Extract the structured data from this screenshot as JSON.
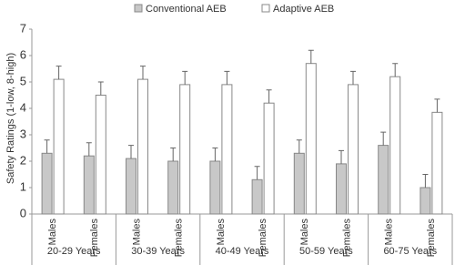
{
  "chart_data": {
    "type": "bar",
    "y_label": "Safety Ratings (1-low, 8-high)",
    "categories": [
      "Males",
      "Females",
      "Males",
      "Females",
      "Males",
      "Females",
      "Males",
      "Females",
      "Males",
      "Females"
    ],
    "groups": [
      "20-29 Years",
      "30-39 Years",
      "40-49 Years",
      "50-59 Years",
      "60-75 Years"
    ],
    "series": [
      {
        "name": "Conventional AEB",
        "color": "#c8c8c8",
        "values": [
          2.3,
          2.2,
          2.1,
          2.0,
          2.0,
          1.3,
          2.3,
          1.9,
          2.6,
          1.0
        ],
        "errors": [
          0.5,
          0.5,
          0.5,
          0.5,
          0.5,
          0.5,
          0.5,
          0.5,
          0.5,
          0.5
        ]
      },
      {
        "name": "Adaptive AEB",
        "color": "#ffffff",
        "values": [
          5.1,
          4.5,
          5.1,
          4.9,
          4.9,
          4.2,
          5.7,
          4.9,
          5.2,
          3.85
        ],
        "errors": [
          0.5,
          0.5,
          0.5,
          0.5,
          0.5,
          0.5,
          0.5,
          0.5,
          0.5,
          0.5
        ]
      }
    ],
    "ylim": [
      0,
      7
    ],
    "yticks": [
      0,
      1,
      2,
      3,
      4,
      5,
      6,
      7
    ],
    "legend": "top"
  }
}
